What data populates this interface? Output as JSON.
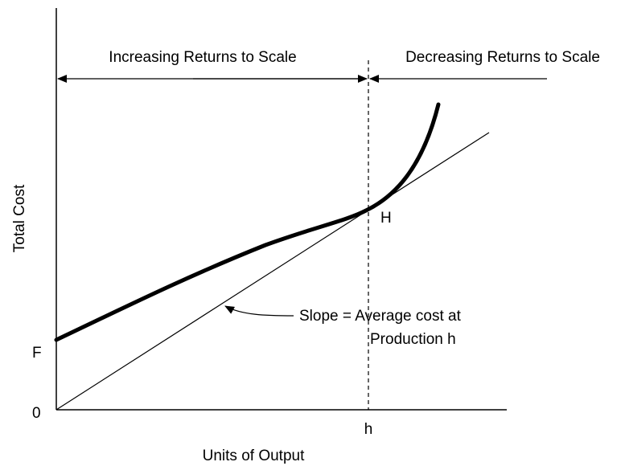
{
  "diagram": {
    "y_axis_label": "Total Cost",
    "x_axis_label": "Units of Output",
    "region_left": "Increasing Returns to Scale",
    "region_right": "Decreasing Returns to Scale",
    "point_label": "H",
    "fixed_cost_label": "F",
    "origin_label": "0",
    "x_marker_label": "h",
    "annotation_lines": [
      "Slope = Average cost at",
      "Production h"
    ]
  }
}
